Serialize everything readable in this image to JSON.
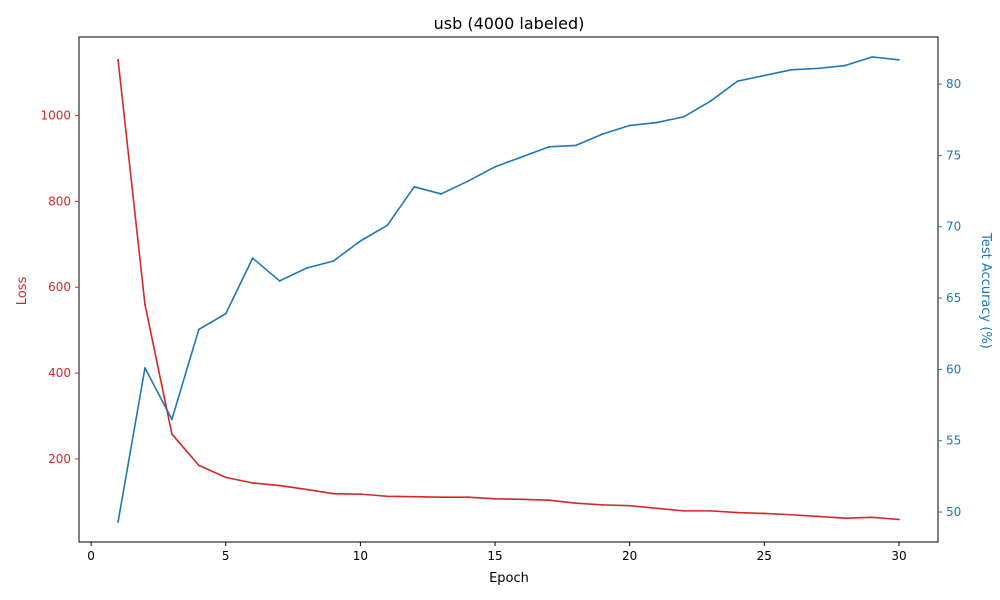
{
  "chart_data": {
    "type": "line",
    "title": "usb (4000 labeled)",
    "xlabel": "Epoch",
    "ylabel_left": "Loss",
    "ylabel_right": "Test Accuracy (%)",
    "xlim": [
      -0.45,
      31.45
    ],
    "ylim_left": [
      6.5,
      1183
    ],
    "ylim_right": [
      47.9,
      83.3
    ],
    "xticks": [
      0,
      5,
      10,
      15,
      20,
      25,
      30
    ],
    "yticks_left": [
      200,
      400,
      600,
      800,
      1000
    ],
    "yticks_right": [
      50,
      55,
      60,
      65,
      70,
      75,
      80
    ],
    "grid": false,
    "x": [
      1,
      2,
      3,
      4,
      5,
      6,
      7,
      8,
      9,
      10,
      11,
      12,
      13,
      14,
      15,
      16,
      17,
      18,
      19,
      20,
      21,
      22,
      23,
      24,
      25,
      26,
      27,
      28,
      29,
      30
    ],
    "series": [
      {
        "name": "Loss",
        "axis": "left",
        "color": "#d62728",
        "values": [
          1130,
          560,
          258,
          185,
          157,
          144,
          138,
          129,
          119,
          118,
          113,
          112,
          111,
          111,
          107,
          106,
          104,
          97,
          93,
          91,
          85,
          79,
          79,
          75,
          73,
          70,
          66,
          62,
          64,
          59
        ]
      },
      {
        "name": "Test Accuracy (%)",
        "axis": "right",
        "color": "#1f77b4",
        "values": [
          49.3,
          60.1,
          56.5,
          62.8,
          63.9,
          67.8,
          66.2,
          67.1,
          67.6,
          69.0,
          70.1,
          72.8,
          72.3,
          73.2,
          74.2,
          74.9,
          75.6,
          75.7,
          76.5,
          77.1,
          77.3,
          77.7,
          78.8,
          80.2,
          80.6,
          81.0,
          81.1,
          81.3,
          81.9,
          81.7
        ]
      }
    ]
  }
}
